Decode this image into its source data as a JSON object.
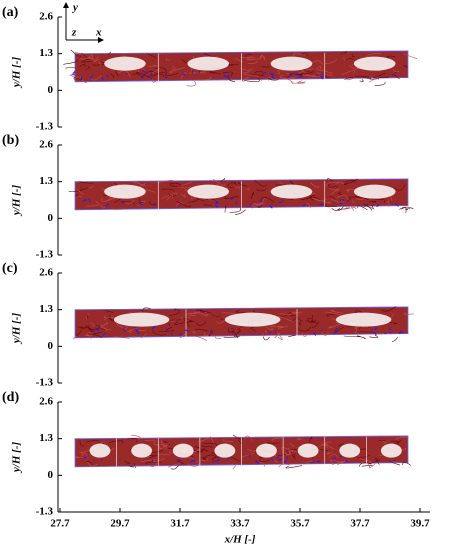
{
  "chart_data": [
    {
      "type": "flow",
      "label": "(a)",
      "ylabel": "y/H [-]",
      "annotations": [
        "y",
        "z",
        "x"
      ],
      "xlim": [
        27.7,
        39.7
      ],
      "ylim": [
        -1.3,
        2.6
      ],
      "yticks": [
        2.6,
        1.3,
        0,
        -1.3
      ]
    },
    {
      "type": "flow",
      "label": "(b)",
      "ylabel": "y/H [-]",
      "xlim": [
        27.7,
        39.7
      ],
      "ylim": [
        -1.3,
        2.6
      ],
      "yticks": [
        2.6,
        1.3,
        0,
        -1.3
      ]
    },
    {
      "type": "flow",
      "label": "(c)",
      "ylabel": "y/H [-]",
      "xlim": [
        27.7,
        39.7
      ],
      "ylim": [
        -1.3,
        2.6
      ],
      "yticks": [
        2.6,
        1.3,
        0,
        -1.3
      ]
    },
    {
      "type": "flow",
      "label": "(d)",
      "ylabel": "y/H [-]",
      "xlabel": "x/H [-]",
      "xlim": [
        27.7,
        39.7
      ],
      "ylim": [
        -1.3,
        2.6
      ],
      "yticks": [
        2.6,
        1.3,
        0,
        -1.3
      ],
      "xticks": [
        27.7,
        29.7,
        31.7,
        33.7,
        35.7,
        37.7,
        39.7
      ]
    }
  ]
}
